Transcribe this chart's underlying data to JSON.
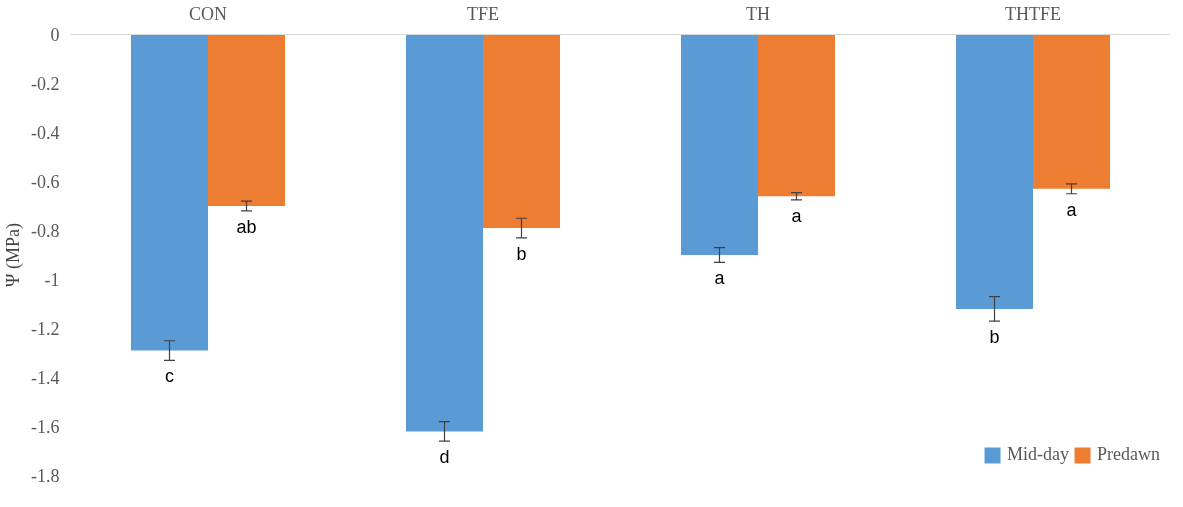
{
  "chart_data": {
    "type": "bar",
    "ylabel": "Ψ (MPa)",
    "categories": [
      "CON",
      "TFE",
      "TH",
      "THTFE"
    ],
    "series": [
      {
        "name": "Mid-day",
        "color": "#5b9bd5",
        "values": [
          -1.29,
          -1.62,
          -0.9,
          -1.12
        ],
        "errors": [
          0.04,
          0.04,
          0.03,
          0.05
        ],
        "value_labels": [
          "c",
          "d",
          "a",
          "b"
        ]
      },
      {
        "name": "Predawn",
        "color": "#ed7d31",
        "values": [
          -0.7,
          -0.79,
          -0.66,
          -0.63
        ],
        "errors": [
          0.02,
          0.04,
          0.015,
          0.02
        ],
        "value_labels": [
          "ab",
          "b",
          "a",
          "a"
        ]
      }
    ],
    "ylim": [
      -1.8,
      0
    ],
    "yticks": [
      0,
      -0.2,
      -0.4,
      -0.6,
      -0.8,
      -1,
      -1.2,
      -1.4,
      -1.6,
      -1.8
    ],
    "grid": false,
    "legend": "bottom right"
  }
}
